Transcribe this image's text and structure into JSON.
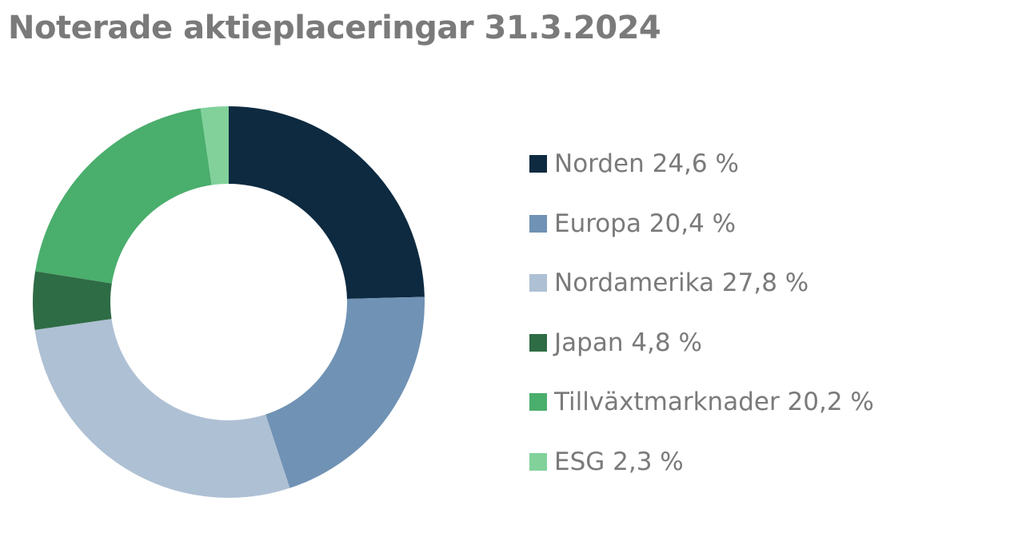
{
  "chart_data": {
    "type": "pie",
    "title": "Noterade aktieplaceringar 31.3.2024",
    "unit": "%",
    "donut": true,
    "legend_position": "right",
    "slices": [
      {
        "name": "Norden",
        "value": 24.6,
        "label": "Norden 24,6 %",
        "color": "#0d2a40"
      },
      {
        "name": "Europa",
        "value": 20.4,
        "label": "Europa 20,4 %",
        "color": "#7092b4"
      },
      {
        "name": "Nordamerika",
        "value": 27.8,
        "label": "Nordamerika 27,8 %",
        "color": "#aec0d4"
      },
      {
        "name": "Japan",
        "value": 4.8,
        "label": "Japan 4,8 %",
        "color": "#2e6c45"
      },
      {
        "name": "Tillväxtmarknader",
        "value": 20.2,
        "label": "Tillväxtmarknader 20,2 %",
        "color": "#4aae6d"
      },
      {
        "name": "ESG",
        "value": 2.3,
        "label": "ESG 2,3 %",
        "color": "#82d19b"
      }
    ]
  }
}
